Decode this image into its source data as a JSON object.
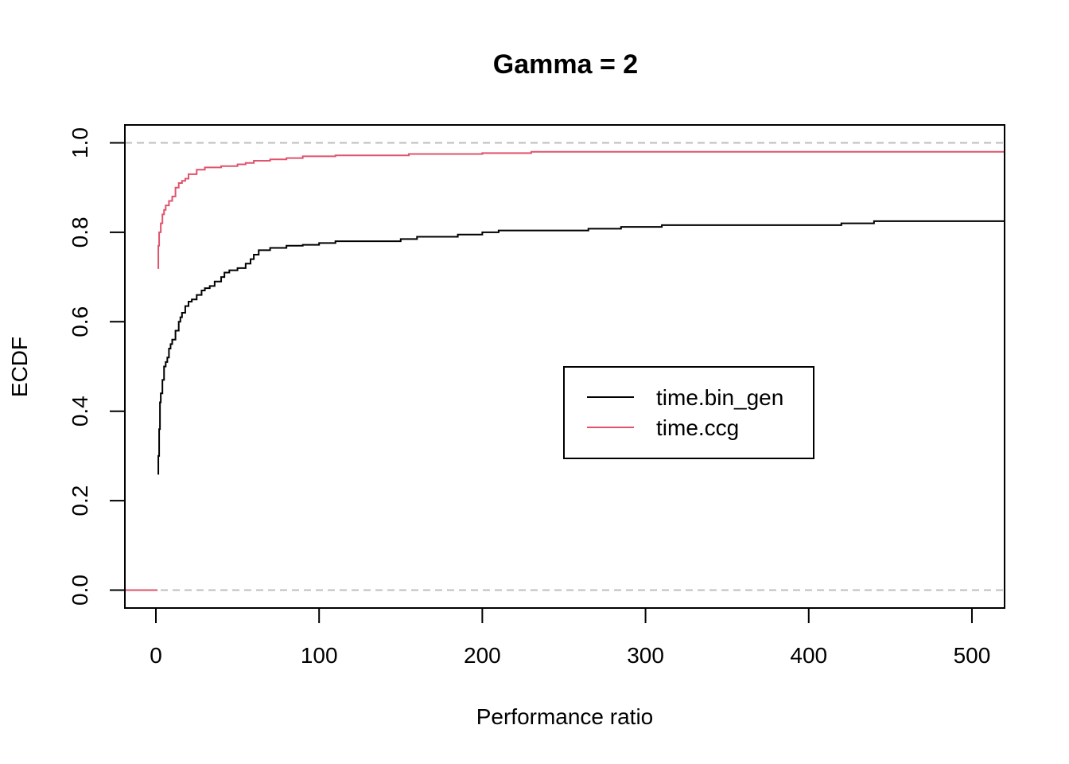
{
  "chart_data": {
    "type": "line",
    "title": "Gamma = 2",
    "xlabel": "Performance ratio",
    "ylabel": "ECDF",
    "xlim": [
      -19,
      520
    ],
    "ylim": [
      -0.04,
      1.04
    ],
    "x_ticks": [
      0,
      100,
      200,
      300,
      400,
      500
    ],
    "x_tick_labels": [
      "0",
      "100",
      "200",
      "300",
      "400",
      "500"
    ],
    "y_ticks": [
      0.0,
      0.2,
      0.4,
      0.6,
      0.8,
      1.0
    ],
    "y_tick_labels": [
      "0.0",
      "0.2",
      "0.4",
      "0.6",
      "0.8",
      "1.0"
    ],
    "reference_lines": [
      0,
      1
    ],
    "reference_line_color": "#bebebe",
    "grid": false,
    "legend_position": "center-right",
    "series": [
      {
        "name": "time.bin_gen",
        "color": "#000000",
        "step_type": "ecdf",
        "x": [
          1,
          1.5,
          2,
          2.5,
          3,
          4,
          5,
          6,
          7,
          8,
          9,
          10,
          12,
          14,
          15,
          16,
          18,
          20,
          22,
          25,
          28,
          30,
          33,
          36,
          40,
          42,
          45,
          50,
          55,
          58,
          60,
          63,
          70,
          80,
          90,
          100,
          110,
          150,
          160,
          185,
          200,
          210,
          265,
          285,
          310,
          420,
          440,
          520
        ],
        "y": [
          0.26,
          0.3,
          0.36,
          0.42,
          0.44,
          0.47,
          0.5,
          0.51,
          0.52,
          0.54,
          0.55,
          0.56,
          0.58,
          0.6,
          0.61,
          0.62,
          0.635,
          0.645,
          0.65,
          0.66,
          0.67,
          0.675,
          0.68,
          0.69,
          0.7,
          0.71,
          0.715,
          0.72,
          0.73,
          0.74,
          0.75,
          0.76,
          0.765,
          0.77,
          0.772,
          0.776,
          0.78,
          0.785,
          0.79,
          0.795,
          0.8,
          0.804,
          0.808,
          0.812,
          0.816,
          0.82,
          0.825,
          0.825
        ]
      },
      {
        "name": "time.ccg",
        "color": "#df536b",
        "step_type": "ecdf",
        "x": [
          1,
          1.5,
          2,
          3,
          4,
          5,
          6,
          8,
          10,
          12,
          14,
          16,
          18,
          20,
          25,
          30,
          40,
          50,
          55,
          60,
          70,
          80,
          90,
          110,
          155,
          200,
          230,
          520
        ],
        "y": [
          0.72,
          0.77,
          0.8,
          0.82,
          0.84,
          0.85,
          0.86,
          0.87,
          0.88,
          0.9,
          0.91,
          0.915,
          0.92,
          0.93,
          0.94,
          0.945,
          0.948,
          0.952,
          0.955,
          0.96,
          0.963,
          0.966,
          0.97,
          0.972,
          0.975,
          0.977,
          0.98,
          0.98
        ]
      }
    ]
  }
}
